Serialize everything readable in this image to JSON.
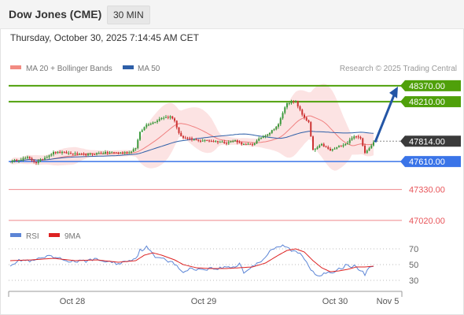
{
  "header": {
    "title": "Dow Jones (CME)",
    "interval": "30 MIN",
    "timestamp": "Thursday, October 30, 2025 7:14:45 AM CET"
  },
  "legend": {
    "ma20": "MA 20 + Bollinger Bands",
    "ma50": "MA 50",
    "credit": "Research © 2025 Trading Central"
  },
  "colors": {
    "resistance": "#4fa00a",
    "support": "#3a74e8",
    "lower": "#e8555a",
    "up": "#3d9a3d",
    "down": "#cc3333",
    "ma20": "#f08080",
    "ma50": "#2e5fa8",
    "band_fill": "#fcdede",
    "rsi": "#5c85d6",
    "rsi_ma": "#dd2222"
  },
  "chart_data": [
    {
      "type": "candlestick",
      "title": "Dow Jones (CME)",
      "interval": "30 MIN",
      "ylim": [
        46940,
        48440
      ],
      "x_ticks": [
        "Oct 28",
        "Oct 29",
        "Oct 30",
        "Nov 5"
      ],
      "levels": [
        {
          "value": "48370.00",
          "style": "resistance"
        },
        {
          "value": "48210.00",
          "style": "resistance"
        },
        {
          "value": "47814.00",
          "style": "current"
        },
        {
          "value": "47610.00",
          "style": "support"
        },
        {
          "value": "47330.00",
          "style": "lower"
        },
        {
          "value": "47020.00",
          "style": "lower"
        }
      ],
      "series": [
        {
          "name": "MA 20 + Bollinger Bands",
          "kind": "ma20"
        },
        {
          "name": "MA 50",
          "kind": "ma50"
        }
      ],
      "anchors": [
        [
          0,
          47610
        ],
        [
          4,
          47630
        ],
        [
          8,
          47650
        ],
        [
          12,
          47600
        ],
        [
          16,
          47650
        ],
        [
          20,
          47700
        ],
        [
          24,
          47700
        ],
        [
          28,
          47690
        ],
        [
          32,
          47680
        ],
        [
          36,
          47680
        ],
        [
          40,
          47690
        ],
        [
          45,
          47700
        ],
        [
          50,
          47700
        ],
        [
          55,
          47700
        ],
        [
          58,
          47750
        ],
        [
          60,
          47900
        ],
        [
          63,
          47980
        ],
        [
          66,
          48000
        ],
        [
          70,
          48050
        ],
        [
          74,
          48060
        ],
        [
          76,
          48020
        ],
        [
          78,
          47890
        ],
        [
          80,
          47850
        ],
        [
          84,
          47830
        ],
        [
          88,
          47820
        ],
        [
          92,
          47820
        ],
        [
          96,
          47810
        ],
        [
          100,
          47800
        ],
        [
          104,
          47820
        ],
        [
          108,
          47780
        ],
        [
          112,
          47780
        ],
        [
          116,
          47850
        ],
        [
          120,
          47900
        ],
        [
          124,
          47980
        ],
        [
          126,
          48100
        ],
        [
          128,
          48200
        ],
        [
          132,
          48210
        ],
        [
          135,
          48080
        ],
        [
          138,
          48000
        ],
        [
          140,
          47720
        ],
        [
          144,
          47780
        ],
        [
          148,
          47720
        ],
        [
          152,
          47760
        ],
        [
          156,
          47800
        ],
        [
          158,
          47850
        ],
        [
          160,
          47860
        ],
        [
          162,
          47850
        ],
        [
          164,
          47700
        ],
        [
          166,
          47750
        ],
        [
          168,
          47800
        ]
      ],
      "arrow_target": "48370.00"
    },
    {
      "type": "line",
      "title": "RSI",
      "series": [
        {
          "name": "RSI"
        },
        {
          "name": "9MA"
        }
      ],
      "ylim": [
        20,
        80
      ],
      "y_ticks": [
        "70",
        "50",
        "30"
      ],
      "rsi_anchors": [
        [
          0,
          50
        ],
        [
          5,
          56
        ],
        [
          10,
          54
        ],
        [
          14,
          58
        ],
        [
          18,
          60
        ],
        [
          22,
          58
        ],
        [
          26,
          55
        ],
        [
          30,
          54
        ],
        [
          34,
          54
        ],
        [
          38,
          57
        ],
        [
          42,
          55
        ],
        [
          45,
          54
        ],
        [
          50,
          51
        ],
        [
          54,
          55
        ],
        [
          58,
          58
        ],
        [
          60,
          68
        ],
        [
          63,
          72
        ],
        [
          65,
          66
        ],
        [
          67,
          59
        ],
        [
          70,
          60
        ],
        [
          73,
          55
        ],
        [
          76,
          51
        ],
        [
          78,
          44
        ],
        [
          80,
          41
        ],
        [
          84,
          45
        ],
        [
          88,
          44
        ],
        [
          92,
          45
        ],
        [
          96,
          45
        ],
        [
          100,
          47
        ],
        [
          104,
          47
        ],
        [
          106,
          52
        ],
        [
          108,
          40
        ],
        [
          110,
          44
        ],
        [
          112,
          47
        ],
        [
          114,
          52
        ],
        [
          116,
          55
        ],
        [
          118,
          60
        ],
        [
          121,
          70
        ],
        [
          124,
          71
        ],
        [
          126,
          74
        ],
        [
          128,
          72
        ],
        [
          130,
          68
        ],
        [
          133,
          65
        ],
        [
          135,
          62
        ],
        [
          137,
          53
        ],
        [
          139,
          45
        ],
        [
          141,
          38
        ],
        [
          143,
          37
        ],
        [
          146,
          40
        ],
        [
          148,
          38
        ],
        [
          150,
          40
        ],
        [
          152,
          44
        ],
        [
          154,
          47
        ],
        [
          156,
          50
        ],
        [
          158,
          48
        ],
        [
          160,
          47
        ],
        [
          162,
          42
        ],
        [
          164,
          38
        ],
        [
          166,
          47
        ],
        [
          168,
          49
        ]
      ],
      "ma_anchors": [
        [
          0,
          55
        ],
        [
          10,
          56
        ],
        [
          20,
          58
        ],
        [
          30,
          55
        ],
        [
          40,
          56
        ],
        [
          50,
          53
        ],
        [
          58,
          55
        ],
        [
          62,
          62
        ],
        [
          66,
          65
        ],
        [
          70,
          62
        ],
        [
          76,
          56
        ],
        [
          80,
          50
        ],
        [
          86,
          46
        ],
        [
          92,
          45
        ],
        [
          100,
          45
        ],
        [
          106,
          46
        ],
        [
          112,
          47
        ],
        [
          118,
          52
        ],
        [
          124,
          62
        ],
        [
          128,
          68
        ],
        [
          132,
          70
        ],
        [
          136,
          66
        ],
        [
          140,
          55
        ],
        [
          144,
          46
        ],
        [
          148,
          41
        ],
        [
          152,
          42
        ],
        [
          156,
          44
        ],
        [
          160,
          47
        ],
        [
          164,
          47
        ],
        [
          168,
          48
        ]
      ]
    }
  ]
}
